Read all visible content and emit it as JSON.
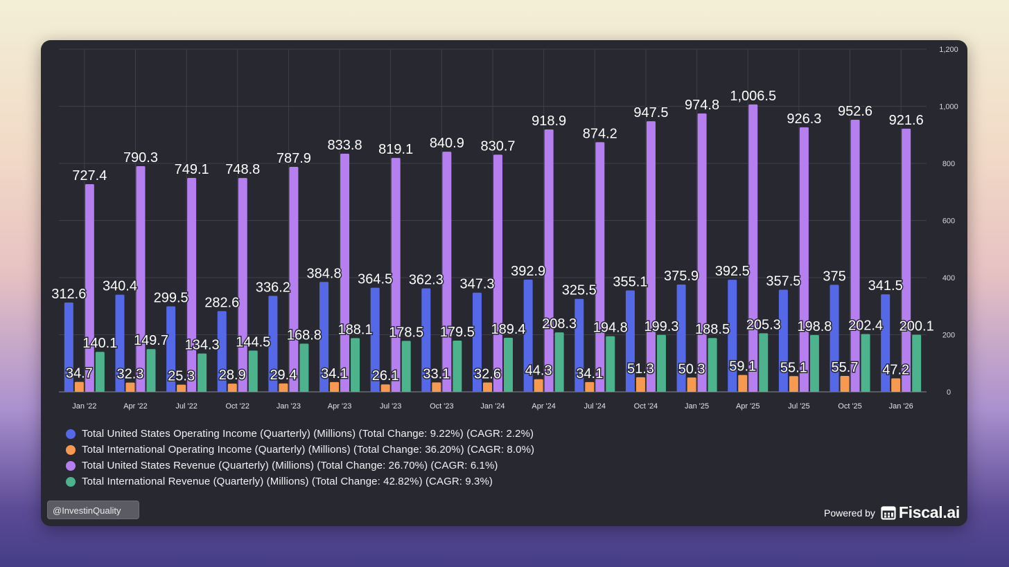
{
  "chart_data": {
    "type": "bar",
    "categories": [
      "Jan '22",
      "Apr '22",
      "Jul '22",
      "Oct '22",
      "Jan '23",
      "Apr '23",
      "Jul '23",
      "Oct '23",
      "Jan '24",
      "Apr '24",
      "Jul '24",
      "Oct '24",
      "Jan '25",
      "Apr '25",
      "Jul '25",
      "Oct '25",
      "Jan '26"
    ],
    "series": [
      {
        "name": "Total United States Operating Income (Quarterly) (Millions) (Total Change: 9.22%) (CAGR: 2.2%)",
        "color": "#5468e8",
        "values": [
          312.6,
          340.4,
          299.5,
          282.6,
          336.2,
          384.8,
          364.5,
          362.3,
          347.3,
          392.9,
          325.5,
          355.1,
          375.9,
          392.5,
          357.5,
          375,
          341.5
        ],
        "labels": [
          "312.6",
          "340.4",
          "299.5",
          "282.6",
          "336.2",
          "384.8",
          "364.5",
          "362.3",
          "347.3",
          "392.9",
          "325.5",
          "355.1",
          "375.9",
          "392.5",
          "357.5",
          "375",
          "341.5"
        ]
      },
      {
        "name": "Total International Operating Income (Quarterly) (Millions) (Total Change: 36.20%) (CAGR: 8.0%)",
        "color": "#f79a4f",
        "values": [
          34.7,
          32.3,
          25.3,
          28.9,
          29.4,
          34.1,
          26.1,
          33.1,
          32.6,
          44.3,
          34.1,
          51.3,
          50.3,
          59.1,
          55.1,
          55.7,
          47.2
        ],
        "labels": [
          "34.7",
          "32.3",
          "25.3",
          "28.9",
          "29.4",
          "34.1",
          "26.1",
          "33.1",
          "32.6",
          "44.3",
          "34.1",
          "51.3",
          "50.3",
          "59.1",
          "55.1",
          "55.7",
          "47.2"
        ]
      },
      {
        "name": "Total United States Revenue (Quarterly) (Millions) (Total Change: 26.70%) (CAGR: 6.1%)",
        "color": "#b57ff0",
        "values": [
          727.4,
          790.3,
          749.1,
          748.8,
          787.9,
          833.8,
          819.1,
          840.9,
          830.7,
          918.9,
          874.2,
          947.5,
          974.8,
          1006.5,
          926.3,
          952.6,
          921.6
        ],
        "labels": [
          "727.4",
          "790.3",
          "749.1",
          "748.8",
          "787.9",
          "833.8",
          "819.1",
          "840.9",
          "830.7",
          "918.9",
          "874.2",
          "947.5",
          "974.8",
          "1,006.5",
          "926.3",
          "952.6",
          "921.6"
        ]
      },
      {
        "name": "Total International Revenue (Quarterly) (Millions) (Total Change: 42.82%) (CAGR: 9.3%)",
        "color": "#4cb38d",
        "values": [
          140.1,
          149.7,
          134.3,
          144.5,
          168.8,
          188.1,
          178.5,
          179.5,
          189.4,
          208.3,
          194.8,
          199.3,
          188.5,
          205.3,
          198.8,
          202.4,
          200.1
        ],
        "labels": [
          "140.1",
          "149.7",
          "134.3",
          "144.5",
          "168.8",
          "188.1",
          "178.5",
          "179.5",
          "189.4",
          "208.3",
          "194.8",
          "199.3",
          "188.5",
          "205.3",
          "198.8",
          "202.4",
          "200.1"
        ]
      }
    ],
    "y_ticks": [
      0,
      200,
      400,
      600,
      800,
      1000,
      1200
    ],
    "y_tick_labels": [
      "0",
      "200",
      "400",
      "600",
      "800",
      "1,000",
      "1,200"
    ],
    "ylim": [
      0,
      1200
    ],
    "y_axis_side": "right",
    "grid": true,
    "legend_position": "bottom-left"
  },
  "legend": [
    {
      "label": "Total United States Operating Income (Quarterly) (Millions) (Total Change: 9.22%) (CAGR: 2.2%)",
      "color": "#5468e8"
    },
    {
      "label": "Total International Operating Income (Quarterly) (Millions) (Total Change: 36.20%) (CAGR: 8.0%)",
      "color": "#f79a4f"
    },
    {
      "label": "Total United States Revenue (Quarterly) (Millions) (Total Change: 26.70%) (CAGR: 6.1%)",
      "color": "#b57ff0"
    },
    {
      "label": "Total International Revenue (Quarterly) (Millions) (Total Change: 42.82%) (CAGR: 9.3%)",
      "color": "#4cb38d"
    }
  ],
  "watermark": "@InvestinQuality",
  "footer": {
    "powered_by": "Powered by",
    "brand": "Fiscal.ai"
  }
}
